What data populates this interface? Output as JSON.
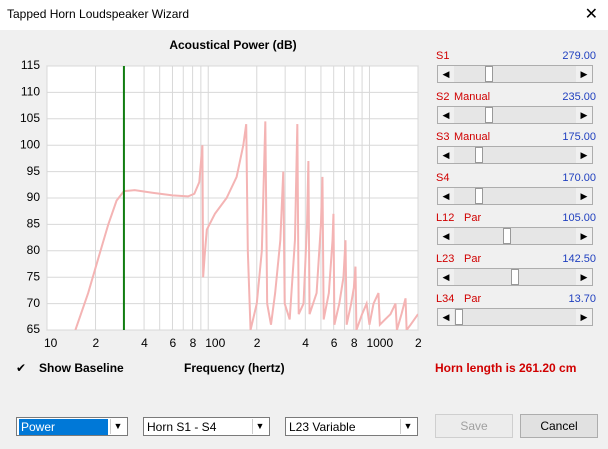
{
  "window": {
    "title": "Tapped Horn Loudspeaker Wizard"
  },
  "chart_data": {
    "type": "line",
    "title": "Acoustical Power (dB)",
    "xlabel": "Frequency (hertz)",
    "log_x": true,
    "grid": true,
    "color": "#f4b4b4",
    "xlim": [
      10,
      2000
    ],
    "ylim": [
      65,
      115
    ],
    "yticks": [
      65,
      70,
      75,
      80,
      85,
      90,
      95,
      100,
      105,
      110,
      115
    ],
    "xticks": [
      10,
      {
        "value": 20,
        "label": "2"
      },
      {
        "value": 40,
        "label": "4"
      },
      {
        "value": 60,
        "label": "6"
      },
      {
        "value": 80,
        "label": "8"
      },
      100,
      {
        "value": 200,
        "label": "2"
      },
      {
        "value": 400,
        "label": "4"
      },
      {
        "value": 600,
        "label": "6"
      },
      {
        "value": 800,
        "label": "8"
      },
      1000,
      {
        "value": 2000,
        "label": "2"
      }
    ],
    "xminor": [
      30,
      50,
      70,
      90,
      300,
      500,
      700,
      900
    ],
    "marker": {
      "x": 30,
      "color": "#107c10"
    },
    "x": [
      15,
      18,
      21,
      24,
      27,
      30,
      35,
      45,
      60,
      75,
      82,
      88,
      92,
      93,
      95,
      98,
      110,
      130,
      150,
      165,
      172,
      176,
      183,
      200,
      215,
      226,
      232,
      245,
      260,
      280,
      292,
      298,
      320,
      345,
      357,
      364,
      390,
      410,
      418,
      425,
      470,
      500,
      511,
      520,
      560,
      590,
      598,
      606,
      650,
      690,
      710,
      722,
      770,
      800,
      819,
      830,
      900,
      960,
      1000,
      1060,
      1137,
      1160,
      1250,
      1350,
      1450,
      1480,
      1580,
      1674,
      1700,
      1800,
      2000
    ],
    "values": [
      65,
      72,
      79,
      85,
      89.5,
      91.3,
      91.5,
      91,
      90.5,
      90.3,
      90.8,
      93,
      100,
      75,
      79,
      84,
      87,
      90,
      94,
      100,
      104,
      80,
      65,
      70,
      80,
      104.5,
      70,
      66,
      72,
      82,
      95,
      70,
      67,
      82,
      104,
      68,
      70,
      85,
      97,
      68,
      72,
      85,
      94,
      67,
      72,
      82,
      87,
      66,
      70,
      75,
      82,
      66,
      70,
      73,
      77,
      65,
      68,
      70,
      66,
      70,
      72,
      66,
      67,
      68,
      70,
      65,
      68,
      71,
      65,
      66,
      68
    ]
  },
  "show_baseline": {
    "label": "Show Baseline",
    "checked": true
  },
  "sliders": [
    {
      "name": "S1",
      "value": "279.00"
    },
    {
      "name": "S2",
      "mode": "Manual",
      "value": "235.00"
    },
    {
      "name": "S3",
      "mode": "Manual",
      "value": "175.00"
    },
    {
      "name": "S4",
      "value": "170.00"
    },
    {
      "name": "L12",
      "mode": "Par",
      "value": "105.00"
    },
    {
      "name": "L23",
      "mode": "Par",
      "value": "142.50"
    },
    {
      "name": "L34",
      "mode": "Par",
      "value": "13.70"
    }
  ],
  "horn_length": "Horn length is 261.20 cm",
  "dropdowns": [
    "Power",
    "Horn S1 - S4",
    "L23 Variable"
  ],
  "buttons": [
    "Save",
    "Cancel"
  ]
}
